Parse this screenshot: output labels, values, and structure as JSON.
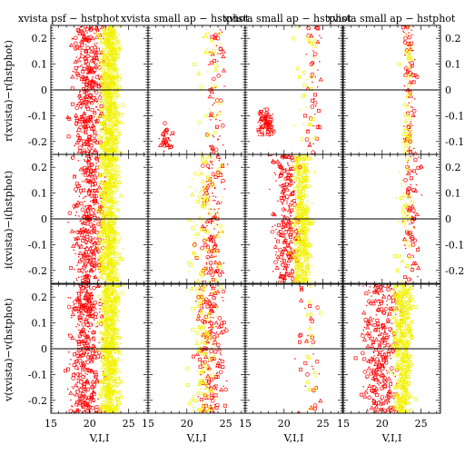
{
  "chart_data": {
    "type": "scatter",
    "layout": "3x4 grid of panels",
    "xlim": [
      15,
      27.5
    ],
    "ylim": [
      -0.25,
      0.25
    ],
    "x_ticks": [
      15,
      20,
      25
    ],
    "y_ticks": [
      -0.2,
      -0.1,
      0,
      0.1,
      0.2
    ],
    "y_tick_labels": [
      "-0.2",
      "-0.1",
      "0",
      "0.1",
      "0.2"
    ],
    "visible_right_tick_labels": [
      "0.2",
      "0.1",
      "0",
      "-0.1",
      "-0.1"
    ],
    "xlabel": "V,I,I",
    "row_ylabels": [
      "r(xvista)−r(hstphot)",
      "i(xvista)−i(hstphot)",
      "v(xvista)−v(hstphot)"
    ],
    "column_titles": [
      "xvista psf − hstphot",
      "xvista small ap − hstphot",
      "xvista small ap − hstphot",
      "xvista small ap − hstphot"
    ],
    "overlapping_title_fragments": [
      "xvista psf − hstpho",
      "xvista small ap",
      "xvista small ap − hstphot",
      "xvista small ap − hstphot"
    ],
    "colors": {
      "red": "#ff0000",
      "yellow": "#ffff00",
      "zero_line": "#000000"
    },
    "marker_types": [
      "open circle",
      "open triangle",
      "open square",
      "dot"
    ],
    "zero_line": 0,
    "panels": [
      [
        {
          "red_points": [
            [
              18.2,
              0.18
            ],
            [
              19.1,
              0.05
            ],
            [
              20.3,
              -0.05
            ],
            [
              21.0,
              -0.12
            ],
            [
              19.5,
              0.12
            ]
          ],
          "yellow_points": [
            [
              22.3,
              0.2
            ],
            [
              23.0,
              0.05
            ],
            [
              22.6,
              -0.08
            ],
            [
              23.4,
              -0.2
            ],
            [
              22.0,
              0.1
            ]
          ]
        },
        {
          "red_points": [
            [
              17.0,
              -0.2
            ],
            [
              18.0,
              -0.22
            ],
            [
              23.0,
              0.0
            ],
            [
              24.0,
              0.2
            ]
          ],
          "yellow_points": [
            [
              23.5,
              0.15
            ],
            [
              22.5,
              -0.1
            ],
            [
              24.2,
              -0.05
            ]
          ]
        },
        {
          "red_points": [
            [
              17.5,
              -0.12
            ],
            [
              18.0,
              -0.15
            ],
            [
              23.5,
              0.1
            ],
            [
              24.0,
              -0.05
            ]
          ],
          "yellow_points": [
            [
              22.0,
              0.05
            ],
            [
              23.5,
              0.18
            ]
          ]
        },
        {
          "red_points": [
            [
              23.0,
              0.2
            ],
            [
              23.6,
              -0.2
            ],
            [
              24.5,
              0.05
            ]
          ],
          "yellow_points": [
            [
              22.2,
              0.1
            ],
            [
              23.0,
              -0.1
            ]
          ]
        }
      ],
      [
        {
          "red_points": [
            [
              18.0,
              0.05
            ],
            [
              19.2,
              -0.05
            ],
            [
              20.5,
              0.15
            ],
            [
              21.2,
              -0.18
            ]
          ],
          "yellow_points": [
            [
              22.0,
              0.1
            ],
            [
              23.0,
              -0.05
            ],
            [
              22.8,
              -0.2
            ],
            [
              23.5,
              0.2
            ]
          ]
        },
        {
          "red_points": [
            [
              21.0,
              -0.1
            ],
            [
              22.5,
              0.1
            ],
            [
              23.2,
              -0.2
            ],
            [
              24.0,
              0.18
            ]
          ],
          "yellow_points": [
            [
              20.5,
              -0.18
            ],
            [
              22.0,
              0.05
            ],
            [
              24.5,
              -0.05
            ]
          ]
        },
        {
          "red_points": [
            [
              18.5,
              -0.05
            ],
            [
              19.5,
              -0.12
            ],
            [
              20.0,
              0.08
            ],
            [
              22.0,
              0.2
            ]
          ],
          "yellow_points": [
            [
              21.5,
              -0.15
            ],
            [
              22.5,
              0.0
            ],
            [
              23.0,
              0.15
            ]
          ]
        },
        {
          "red_points": [
            [
              23.0,
              0.15
            ],
            [
              24.0,
              -0.1
            ],
            [
              25.0,
              0.2
            ]
          ],
          "yellow_points": [
            [
              22.0,
              -0.2
            ],
            [
              23.5,
              0.0
            ]
          ]
        }
      ],
      [
        {
          "red_points": [
            [
              17.5,
              0.05
            ],
            [
              18.5,
              -0.1
            ],
            [
              19.5,
              0.15
            ],
            [
              20.5,
              -0.2
            ]
          ],
          "yellow_points": [
            [
              22.0,
              0.1
            ],
            [
              23.0,
              0.0
            ],
            [
              22.5,
              -0.15
            ],
            [
              23.5,
              0.2
            ]
          ]
        },
        {
          "red_points": [
            [
              21.5,
              0.2
            ],
            [
              22.5,
              0.0
            ],
            [
              23.5,
              -0.15
            ],
            [
              24.5,
              0.1
            ]
          ],
          "yellow_points": [
            [
              21.0,
              -0.2
            ],
            [
              22.0,
              0.05
            ]
          ]
        },
        {
          "red_points": [
            [
              22.0,
              0.05
            ],
            [
              23.0,
              -0.1
            ],
            [
              24.0,
              -0.22
            ]
          ],
          "yellow_points": [
            [
              23.5,
              0.05
            ]
          ]
        },
        {
          "red_points": [
            [
              17.5,
              0.05
            ],
            [
              18.5,
              -0.05
            ],
            [
              19.5,
              0.15
            ],
            [
              21.0,
              -0.18
            ]
          ],
          "yellow_points": [
            [
              22.0,
              0.2
            ],
            [
              23.0,
              0.0
            ],
            [
              22.5,
              -0.12
            ]
          ]
        }
      ]
    ]
  }
}
